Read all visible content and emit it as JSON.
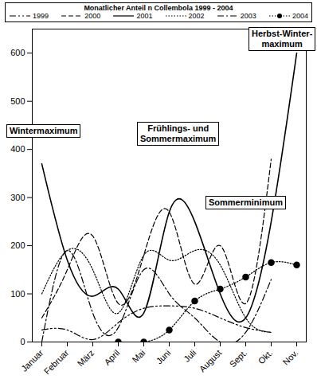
{
  "chart_data": {
    "type": "line",
    "legend_title": "Monatlicher Anteil n Collembola 1999 - 2004",
    "legend": "top",
    "categories": [
      "Januar",
      "Februar",
      "März",
      "April",
      "Mai",
      "Juni",
      "Juli",
      "August",
      "Sept.",
      "Okt.",
      "Nov."
    ],
    "series": [
      {
        "name": "1999",
        "color": "#000000",
        "line_style": "dashdotdot",
        "values": [
          25,
          25,
          5,
          40,
          70,
          75,
          70,
          50,
          30,
          20,
          null
        ]
      },
      {
        "name": "2000",
        "color": "#000000",
        "line_style": "dashed",
        "values": [
          50,
          150,
          220,
          80,
          180,
          270,
          120,
          200,
          80,
          380,
          null
        ]
      },
      {
        "name": "2001",
        "color": "#000000",
        "line_style": "solid",
        "values": [
          370,
          170,
          95,
          110,
          60,
          270,
          250,
          100,
          50,
          250,
          600
        ]
      },
      {
        "name": "2002",
        "color": "#000000",
        "line_style": "dotted",
        "values": [
          100,
          190,
          150,
          60,
          180,
          170,
          190,
          160,
          50,
          20,
          null
        ]
      },
      {
        "name": "2003",
        "color": "#000000",
        "line_style": "dashdot",
        "values": [
          0,
          190,
          60,
          30,
          150,
          100,
          50,
          0,
          20,
          130,
          null
        ]
      },
      {
        "name": "2004",
        "color": "#000000",
        "line_style": "dotted",
        "marker": "circle",
        "values": [
          null,
          null,
          null,
          0,
          0,
          25,
          85,
          110,
          135,
          165,
          160
        ]
      }
    ],
    "ylim": [
      0,
      650
    ],
    "yticks": [
      0,
      100,
      200,
      300,
      400,
      500,
      600
    ],
    "annotations": [
      {
        "text": "Wintermaximum"
      },
      {
        "text": "Frühlings- und\nSommermaximum"
      },
      {
        "text": "Sommerminimum"
      },
      {
        "text": "Herbst-Winter-\nmaximum"
      }
    ]
  }
}
